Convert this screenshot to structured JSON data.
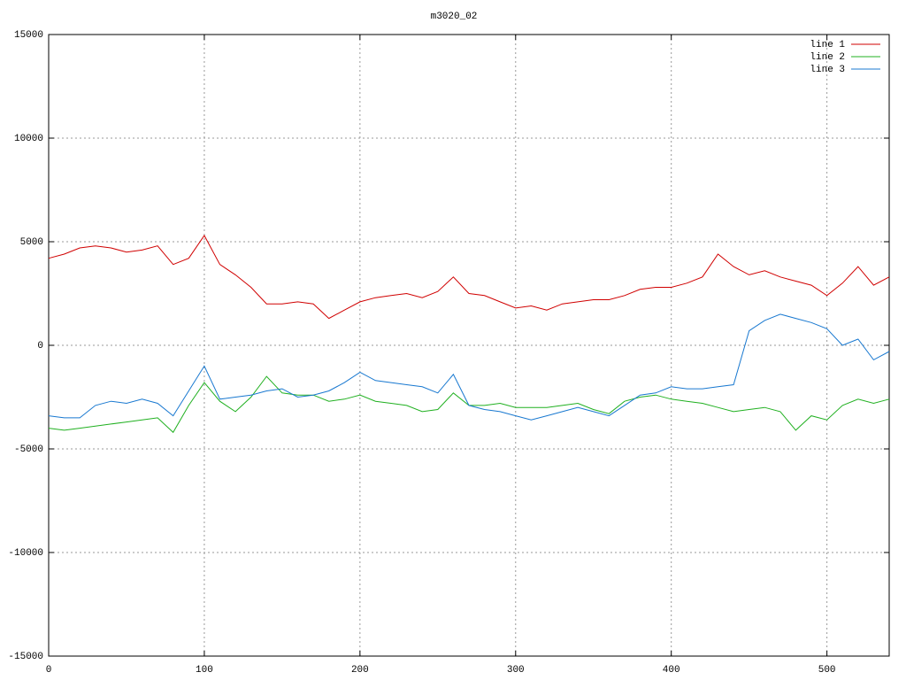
{
  "chart_data": {
    "type": "line",
    "title": "m3020_02",
    "x": [
      0,
      10,
      20,
      30,
      40,
      50,
      60,
      70,
      80,
      90,
      100,
      110,
      120,
      130,
      140,
      150,
      160,
      170,
      180,
      190,
      200,
      210,
      220,
      230,
      240,
      250,
      260,
      270,
      280,
      290,
      300,
      310,
      320,
      330,
      340,
      350,
      360,
      370,
      380,
      390,
      400,
      410,
      420,
      430,
      440,
      450,
      460,
      470,
      480,
      490,
      500,
      510,
      520,
      530,
      540
    ],
    "series": [
      {
        "name": "line 1",
        "color": "#d00000",
        "values": [
          4200,
          4400,
          4700,
          4800,
          4700,
          4500,
          4600,
          4800,
          3900,
          4200,
          5300,
          3900,
          3400,
          2800,
          2000,
          2000,
          2100,
          2000,
          1300,
          1700,
          2100,
          2300,
          2400,
          2500,
          2300,
          2600,
          3300,
          2500,
          2400,
          2100,
          1800,
          1900,
          1700,
          2000,
          2100,
          2200,
          2200,
          2400,
          2700,
          2800,
          2800,
          3000,
          3300,
          4400,
          3800,
          3400,
          3600,
          3300,
          3100,
          2900,
          2400,
          3000,
          3800,
          2900,
          3300
        ]
      },
      {
        "name": "line 2",
        "color": "#20b020",
        "values": [
          -4000,
          -4100,
          -4000,
          -3900,
          -3800,
          -3700,
          -3600,
          -3500,
          -4200,
          -2900,
          -1800,
          -2700,
          -3200,
          -2500,
          -1500,
          -2300,
          -2400,
          -2400,
          -2700,
          -2600,
          -2400,
          -2700,
          -2800,
          -2900,
          -3200,
          -3100,
          -2300,
          -2900,
          -2900,
          -2800,
          -3000,
          -3000,
          -3000,
          -2900,
          -2800,
          -3100,
          -3300,
          -2700,
          -2500,
          -2400,
          -2600,
          -2700,
          -2800,
          -3000,
          -3200,
          -3100,
          -3000,
          -3200,
          -4100,
          -3400,
          -3600,
          -2900,
          -2600,
          -2800,
          -2600
        ]
      },
      {
        "name": "line 3",
        "color": "#1878d0",
        "values": [
          -3400,
          -3500,
          -3500,
          -2900,
          -2700,
          -2800,
          -2600,
          -2800,
          -3400,
          -2200,
          -1000,
          -2600,
          -2500,
          -2400,
          -2200,
          -2100,
          -2500,
          -2400,
          -2200,
          -1800,
          -1300,
          -1700,
          -1800,
          -1900,
          -2000,
          -2300,
          -1400,
          -2900,
          -3100,
          -3200,
          -3400,
          -3600,
          -3400,
          -3200,
          -3000,
          -3200,
          -3400,
          -2900,
          -2400,
          -2300,
          -2000,
          -2100,
          -2100,
          -2000,
          -1900,
          700,
          1200,
          1500,
          1300,
          1100,
          800,
          0,
          300,
          -700,
          -300
        ]
      }
    ],
    "xlim": [
      0,
      540
    ],
    "xticks": [
      0,
      100,
      200,
      300,
      400,
      500
    ],
    "ylim": [
      -15000,
      15000
    ],
    "yticks": [
      -15000,
      -10000,
      -5000,
      0,
      5000,
      10000,
      15000
    ],
    "grid": true,
    "legend": "top-right"
  }
}
